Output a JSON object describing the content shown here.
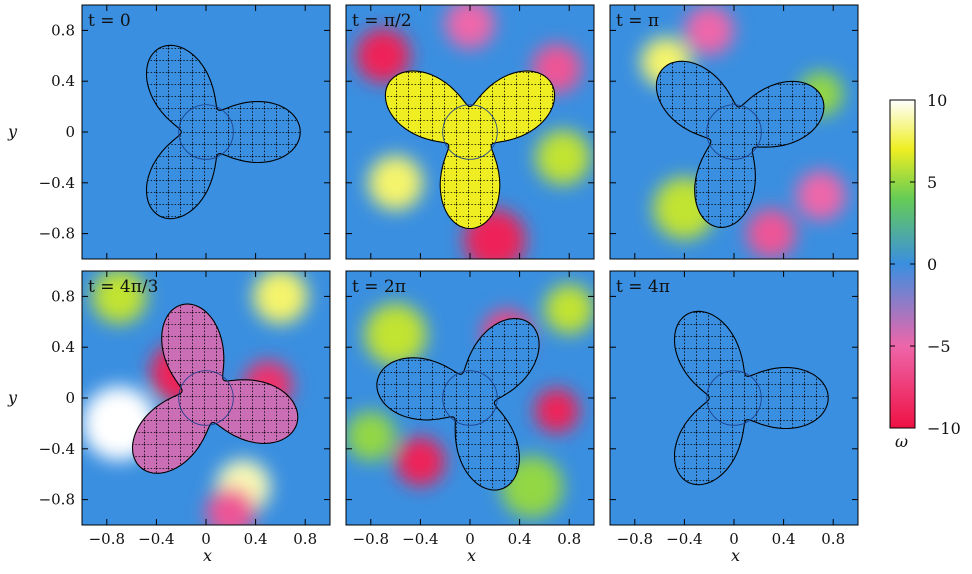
{
  "chart_data": {
    "type": "heatmap",
    "title": "",
    "xlabel": "x",
    "ylabel": "y",
    "xlim": [
      -1,
      1
    ],
    "ylim": [
      -1,
      1
    ],
    "xticks": [
      "−0.8",
      "−0.4",
      "0",
      "0.4",
      "0.8"
    ],
    "xtick_values": [
      -0.8,
      -0.4,
      0,
      0.4,
      0.8
    ],
    "yticks": [
      "0.8",
      "0.4",
      "0",
      "−0.4",
      "−0.8"
    ],
    "ytick_values": [
      0.8,
      0.4,
      0,
      -0.4,
      -0.8
    ],
    "colorbar": {
      "label": "ω",
      "range": [
        -10,
        10
      ],
      "ticks": [
        "10",
        "5",
        "0",
        "−5",
        "−10"
      ],
      "tick_values": [
        10,
        5,
        0,
        -5,
        -10
      ],
      "colors": [
        "#ee1144",
        "#ee66aa",
        "#3a8fe0",
        "#66cc55",
        "#eeee22",
        "#ffffff"
      ]
    },
    "body": {
      "shape": "three-lobed",
      "inner_circle_radius": 0.22
    },
    "panels": [
      {
        "label": "t = 0",
        "rotation_deg": 0,
        "body_vorticity": 0
      },
      {
        "label": "t = π/2",
        "rotation_deg": 30,
        "body_vorticity": 7
      },
      {
        "label": "t = π",
        "rotation_deg": 20,
        "body_vorticity": 0
      },
      {
        "label": "t = 4π/3",
        "rotation_deg": -15,
        "body_vorticity": -4
      },
      {
        "label": "t = 2π",
        "rotation_deg": 50,
        "body_vorticity": 0
      },
      {
        "label": "t = 4π",
        "rotation_deg": 0,
        "body_vorticity": 0
      }
    ]
  }
}
